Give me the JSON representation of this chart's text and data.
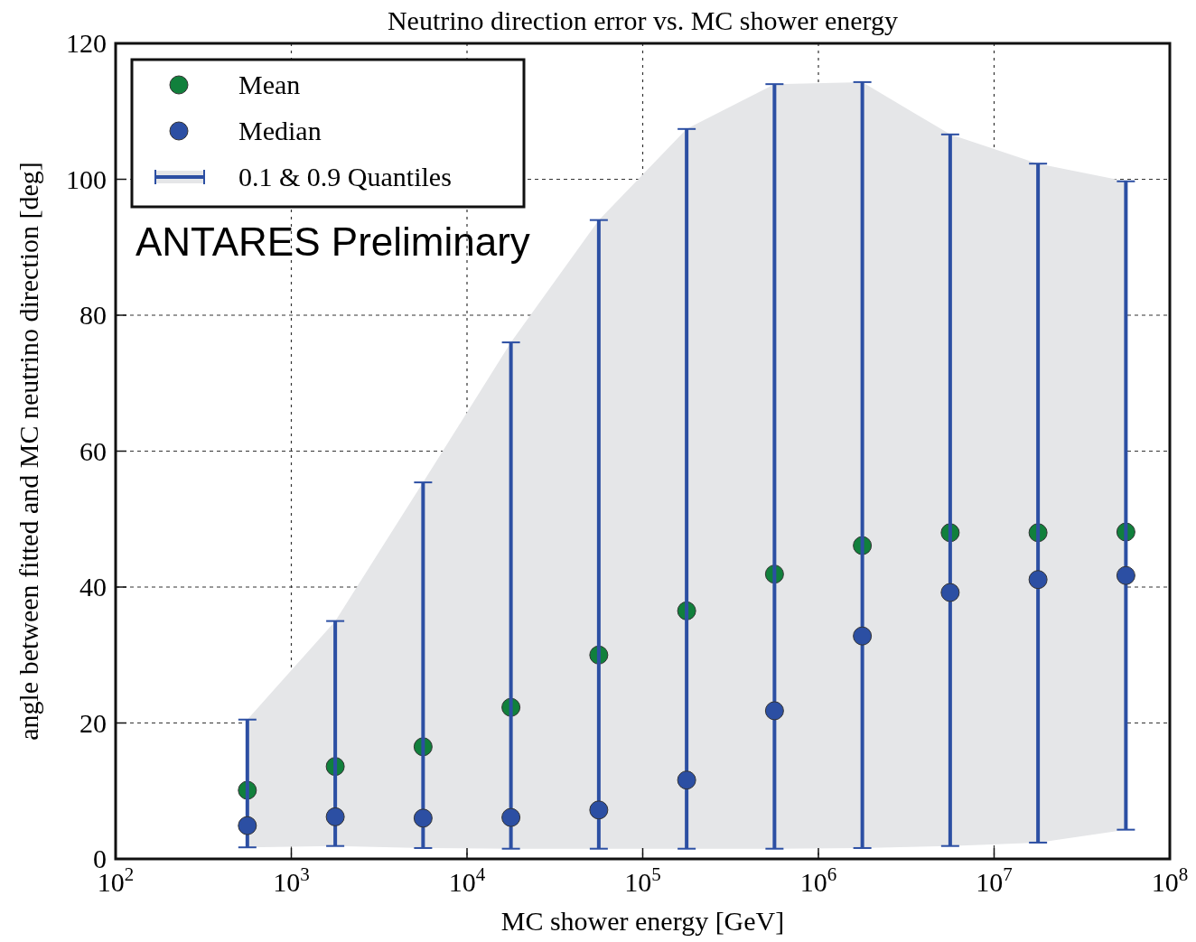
{
  "chart_data": {
    "type": "scatter",
    "title": "Neutrino direction error vs. MC shower energy",
    "xlabel": "MC shower energy [GeV]",
    "ylabel": "angle between fitted and MC neutrino direction [deg]",
    "annotations": [
      "ANTARES Preliminary"
    ],
    "x": [
      562,
      1778,
      5623,
      17783,
      56234,
      177828,
      562341,
      1778279,
      5623413,
      17782794,
      56234133
    ],
    "series": [
      {
        "name": "Mean",
        "color": "#11803c",
        "values": [
          10.1,
          13.6,
          16.5,
          22.3,
          30.0,
          36.5,
          41.9,
          46.1,
          48.0,
          48.0,
          48.1
        ]
      },
      {
        "name": "Median",
        "color": "#2c4fa3",
        "values": [
          4.9,
          6.2,
          6.0,
          6.1,
          7.2,
          11.6,
          21.8,
          32.8,
          39.2,
          41.1,
          41.7
        ],
        "errors": [
          [
            1.7,
            20.5
          ],
          [
            1.9,
            35.0
          ],
          [
            1.6,
            55.4
          ],
          [
            1.5,
            76.0
          ],
          [
            1.5,
            94.0
          ],
          [
            1.5,
            107.4
          ],
          [
            1.5,
            114.0
          ],
          [
            1.6,
            114.3
          ],
          [
            1.9,
            106.6
          ],
          [
            2.4,
            102.3
          ],
          [
            4.3,
            99.7
          ]
        ]
      },
      {
        "name": "0.1 & 0.9 Quantiles",
        "type": "area",
        "color": "#e5e6e8",
        "values": [
          null,
          null,
          null,
          null,
          null,
          null,
          null,
          null,
          null,
          null,
          null
        ],
        "lower": [
          1.7,
          1.9,
          1.6,
          1.5,
          1.5,
          1.5,
          1.5,
          1.6,
          1.9,
          2.4,
          4.3
        ],
        "upper": [
          20.5,
          35.0,
          55.4,
          76.0,
          94.0,
          107.4,
          114.0,
          114.3,
          106.6,
          102.3,
          99.7
        ]
      }
    ],
    "log": "x",
    "xlim": [
      100,
      100000000
    ],
    "ylim": [
      0,
      120
    ],
    "xticks": [
      {
        "value": 100,
        "label": "10$^{2}$"
      },
      {
        "value": 1000,
        "label": "10$^{3}$"
      },
      {
        "value": 10000,
        "label": "10$^{4}$"
      },
      {
        "value": 100000,
        "label": "10$^{5}$"
      },
      {
        "value": 1000000,
        "label": "10$^{6}$"
      },
      {
        "value": 10000000,
        "label": "10$^{7}$"
      },
      {
        "value": 100000000,
        "label": "10$^{8}$"
      }
    ],
    "yticks": [
      0,
      20,
      40,
      60,
      80,
      100,
      120
    ],
    "grid": true,
    "legend": "top left",
    "marker": "circle"
  }
}
